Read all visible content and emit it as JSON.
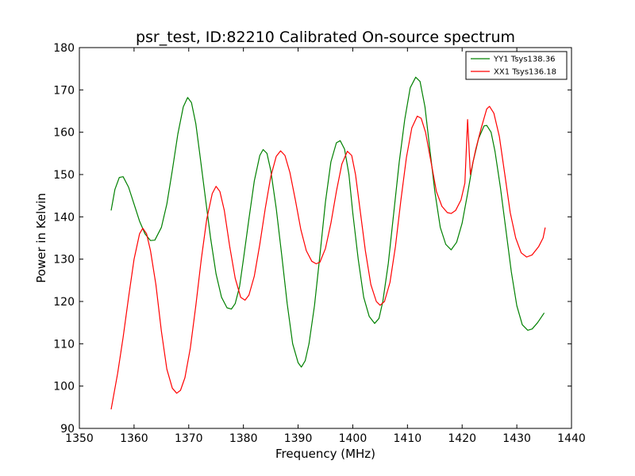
{
  "chart_data": {
    "type": "line",
    "title": "psr_test, ID:82210 Calibrated On-source spectrum",
    "xlabel": "Frequency (MHz)",
    "ylabel": "Power in Kelvin",
    "xlim": [
      1350,
      1440
    ],
    "ylim": [
      90,
      180
    ],
    "xticks": [
      1350,
      1360,
      1370,
      1380,
      1390,
      1400,
      1410,
      1420,
      1430,
      1440
    ],
    "yticks": [
      90,
      100,
      110,
      120,
      130,
      140,
      150,
      160,
      170,
      180
    ],
    "xtick_labels": [
      "1350",
      "1360",
      "1370",
      "1380",
      "1390",
      "1400",
      "1410",
      "1420",
      "1430",
      "1440"
    ],
    "ytick_labels": [
      "90",
      "100",
      "110",
      "120",
      "130",
      "140",
      "150",
      "160",
      "170",
      "180"
    ],
    "grid": false,
    "legend_position": "top-right",
    "series": [
      {
        "name": "YY1 Tsys138.36",
        "color": "#008000",
        "points": [
          [
            1355.8,
            141.5
          ],
          [
            1356.5,
            146.5
          ],
          [
            1357.3,
            149.3
          ],
          [
            1358.0,
            149.5
          ],
          [
            1359.0,
            147.0
          ],
          [
            1360.0,
            143.0
          ],
          [
            1361.0,
            139.0
          ],
          [
            1362.0,
            136.0
          ],
          [
            1363.0,
            134.4
          ],
          [
            1363.8,
            134.5
          ],
          [
            1365.0,
            137.5
          ],
          [
            1366.0,
            143.0
          ],
          [
            1367.0,
            151.0
          ],
          [
            1368.0,
            159.5
          ],
          [
            1369.0,
            166.0
          ],
          [
            1369.8,
            168.2
          ],
          [
            1370.5,
            167.0
          ],
          [
            1371.3,
            162.0
          ],
          [
            1372.0,
            155.0
          ],
          [
            1373.0,
            145.0
          ],
          [
            1374.0,
            135.0
          ],
          [
            1375.0,
            126.5
          ],
          [
            1376.0,
            121.0
          ],
          [
            1377.0,
            118.5
          ],
          [
            1377.8,
            118.2
          ],
          [
            1378.5,
            119.5
          ],
          [
            1379.3,
            123.5
          ],
          [
            1380.0,
            130.0
          ],
          [
            1381.0,
            139.5
          ],
          [
            1382.0,
            148.5
          ],
          [
            1383.0,
            154.5
          ],
          [
            1383.6,
            155.9
          ],
          [
            1384.3,
            155.0
          ],
          [
            1385.0,
            151.0
          ],
          [
            1386.0,
            142.0
          ],
          [
            1387.0,
            131.0
          ],
          [
            1388.0,
            119.5
          ],
          [
            1389.0,
            110.0
          ],
          [
            1390.0,
            105.5
          ],
          [
            1390.6,
            104.5
          ],
          [
            1391.3,
            106.0
          ],
          [
            1392.0,
            110.0
          ],
          [
            1393.0,
            119.0
          ],
          [
            1394.0,
            131.0
          ],
          [
            1395.0,
            143.5
          ],
          [
            1396.0,
            153.0
          ],
          [
            1397.0,
            157.5
          ],
          [
            1397.7,
            158.0
          ],
          [
            1398.5,
            156.0
          ],
          [
            1399.3,
            150.0
          ],
          [
            1400.0,
            141.0
          ],
          [
            1401.0,
            130.0
          ],
          [
            1402.0,
            121.0
          ],
          [
            1403.0,
            116.5
          ],
          [
            1404.0,
            114.8
          ],
          [
            1404.8,
            116.0
          ],
          [
            1405.5,
            120.0
          ],
          [
            1406.5,
            129.0
          ],
          [
            1407.5,
            141.0
          ],
          [
            1408.5,
            153.0
          ],
          [
            1409.5,
            163.0
          ],
          [
            1410.5,
            170.5
          ],
          [
            1411.5,
            173.0
          ],
          [
            1412.3,
            172.0
          ],
          [
            1413.2,
            166.0
          ],
          [
            1414.0,
            157.0
          ],
          [
            1415.0,
            146.0
          ],
          [
            1416.0,
            137.5
          ],
          [
            1417.0,
            133.5
          ],
          [
            1418.0,
            132.2
          ],
          [
            1419.0,
            134.0
          ],
          [
            1420.0,
            138.5
          ],
          [
            1421.0,
            145.5
          ],
          [
            1422.0,
            153.0
          ],
          [
            1423.0,
            158.5
          ],
          [
            1424.0,
            161.5
          ],
          [
            1424.5,
            161.6
          ],
          [
            1425.3,
            160.0
          ],
          [
            1426.0,
            155.5
          ],
          [
            1427.0,
            147.0
          ],
          [
            1428.0,
            137.0
          ],
          [
            1429.0,
            127.0
          ],
          [
            1430.0,
            119.0
          ],
          [
            1431.0,
            114.5
          ],
          [
            1432.0,
            113.2
          ],
          [
            1432.8,
            113.5
          ],
          [
            1433.8,
            115.0
          ],
          [
            1435.0,
            117.3
          ]
        ]
      },
      {
        "name": "XX1 Tsys136.18",
        "color": "#ff0000",
        "points": [
          [
            1355.8,
            94.5
          ],
          [
            1357.0,
            103.0
          ],
          [
            1358.0,
            111.5
          ],
          [
            1359.0,
            121.0
          ],
          [
            1360.0,
            130.0
          ],
          [
            1361.0,
            136.0
          ],
          [
            1361.6,
            137.3
          ],
          [
            1362.3,
            136.0
          ],
          [
            1363.0,
            132.0
          ],
          [
            1364.0,
            124.0
          ],
          [
            1365.0,
            113.0
          ],
          [
            1366.0,
            104.0
          ],
          [
            1367.0,
            99.5
          ],
          [
            1367.8,
            98.3
          ],
          [
            1368.5,
            99.0
          ],
          [
            1369.3,
            102.0
          ],
          [
            1370.3,
            109.0
          ],
          [
            1371.3,
            119.0
          ],
          [
            1372.3,
            130.0
          ],
          [
            1373.3,
            139.5
          ],
          [
            1374.3,
            145.5
          ],
          [
            1375.0,
            147.2
          ],
          [
            1375.7,
            146.0
          ],
          [
            1376.5,
            141.5
          ],
          [
            1377.5,
            133.0
          ],
          [
            1378.5,
            125.5
          ],
          [
            1379.5,
            121.0
          ],
          [
            1380.3,
            120.3
          ],
          [
            1381.0,
            121.5
          ],
          [
            1382.0,
            126.0
          ],
          [
            1383.0,
            133.5
          ],
          [
            1384.0,
            142.0
          ],
          [
            1385.0,
            149.5
          ],
          [
            1386.0,
            154.3
          ],
          [
            1386.8,
            155.6
          ],
          [
            1387.6,
            154.5
          ],
          [
            1388.5,
            150.5
          ],
          [
            1389.5,
            144.0
          ],
          [
            1390.5,
            137.0
          ],
          [
            1391.5,
            132.0
          ],
          [
            1392.5,
            129.5
          ],
          [
            1393.3,
            128.9
          ],
          [
            1394.0,
            129.3
          ],
          [
            1395.0,
            132.5
          ],
          [
            1396.0,
            138.5
          ],
          [
            1397.0,
            146.0
          ],
          [
            1398.0,
            152.5
          ],
          [
            1399.0,
            155.5
          ],
          [
            1399.8,
            154.5
          ],
          [
            1400.5,
            150.0
          ],
          [
            1401.3,
            142.0
          ],
          [
            1402.3,
            132.0
          ],
          [
            1403.3,
            124.0
          ],
          [
            1404.3,
            120.0
          ],
          [
            1405.0,
            119.1
          ],
          [
            1405.8,
            120.0
          ],
          [
            1406.8,
            124.5
          ],
          [
            1407.8,
            133.0
          ],
          [
            1408.8,
            144.0
          ],
          [
            1409.8,
            154.0
          ],
          [
            1410.8,
            161.0
          ],
          [
            1411.8,
            163.8
          ],
          [
            1412.5,
            163.3
          ],
          [
            1413.3,
            160.0
          ],
          [
            1414.3,
            153.0
          ],
          [
            1415.3,
            146.0
          ],
          [
            1416.3,
            142.5
          ],
          [
            1417.3,
            141.0
          ],
          [
            1418.0,
            140.8
          ],
          [
            1418.8,
            141.5
          ],
          [
            1419.8,
            144.0
          ],
          [
            1420.5,
            148.0
          ],
          [
            1421.0,
            163.0
          ],
          [
            1421.5,
            150.0
          ],
          [
            1422.5,
            156.0
          ],
          [
            1423.5,
            161.0
          ],
          [
            1424.5,
            165.5
          ],
          [
            1425.0,
            166.1
          ],
          [
            1425.8,
            164.5
          ],
          [
            1426.8,
            159.0
          ],
          [
            1427.8,
            150.0
          ],
          [
            1428.8,
            141.0
          ],
          [
            1429.8,
            135.0
          ],
          [
            1430.8,
            131.5
          ],
          [
            1431.8,
            130.5
          ],
          [
            1432.8,
            131.0
          ],
          [
            1434.0,
            133.0
          ],
          [
            1434.8,
            135.0
          ],
          [
            1435.2,
            137.5
          ]
        ]
      }
    ]
  }
}
